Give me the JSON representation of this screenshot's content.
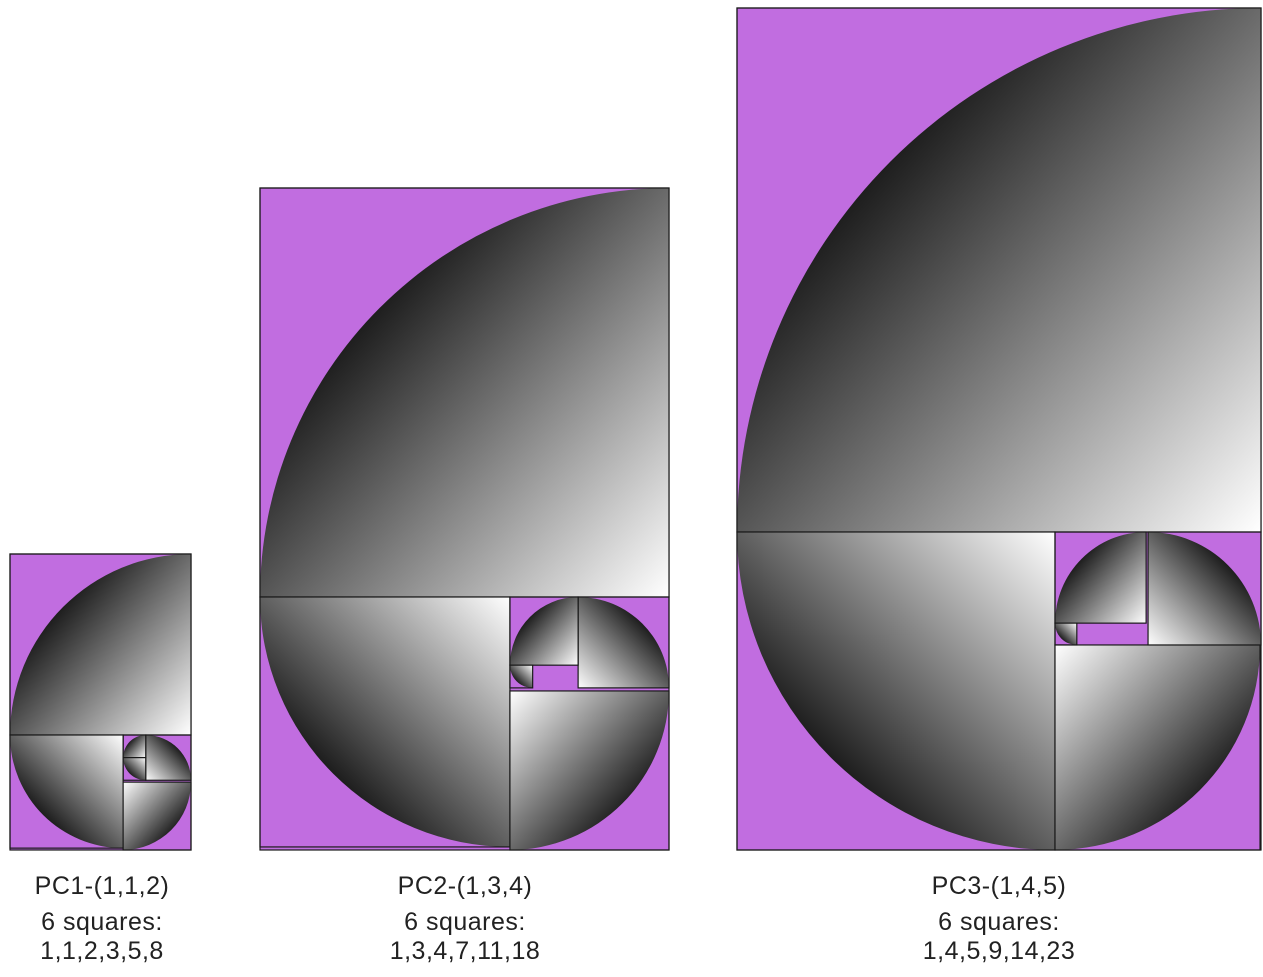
{
  "colors": {
    "fill": "#c16de0",
    "stroke": "#1a1a1a",
    "gradient_dark": "#000000",
    "gradient_light": "#ffffff"
  },
  "figures": [
    {
      "name": "pc1",
      "title": "PC1-(1,1,2)",
      "square_count": "6 squares:",
      "sequence_label": "1,1,2,3,5,8",
      "sides": [
        1,
        1,
        2,
        3,
        5,
        8
      ]
    },
    {
      "name": "pc2",
      "title": "PC2-(1,3,4)",
      "square_count": "6 squares:",
      "sequence_label": "1,3,4,7,11,18",
      "sides": [
        1,
        3,
        4,
        7,
        11,
        18
      ]
    },
    {
      "name": "pc3",
      "title": "PC3-(1,4,5)",
      "square_count": "6 squares:",
      "sequence_label": "1,4,5,9,14,23",
      "sides": [
        1,
        4,
        5,
        9,
        14,
        23
      ]
    }
  ]
}
